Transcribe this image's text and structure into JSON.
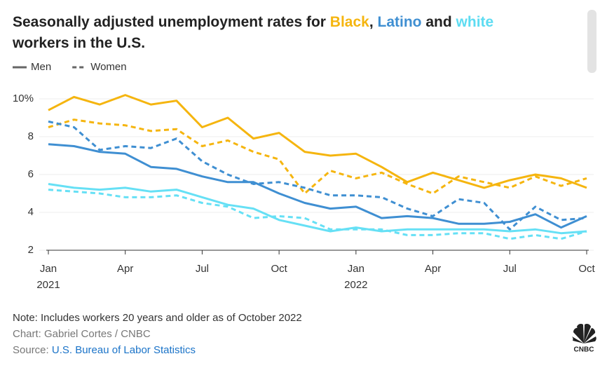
{
  "chart_data": {
    "type": "line",
    "title_lines": [
      [
        {
          "text": "Seasonally adjusted unemployment rates for "
        },
        {
          "text": "Black",
          "color": "#f5b50f"
        },
        {
          "text": ", "
        },
        {
          "text": "Latino",
          "color": "#3f8fd2"
        },
        {
          "text": " and "
        },
        {
          "text": "white",
          "color": "#5ddcf2"
        }
      ],
      [
        {
          "text": "workers in the U.S."
        }
      ]
    ],
    "legend": [
      {
        "label": "Men",
        "dash": false
      },
      {
        "label": "Women",
        "dash": true
      }
    ],
    "x": [
      "2021-01",
      "2021-02",
      "2021-03",
      "2021-04",
      "2021-05",
      "2021-06",
      "2021-07",
      "2021-08",
      "2021-09",
      "2021-10",
      "2021-11",
      "2021-12",
      "2022-01",
      "2022-02",
      "2022-03",
      "2022-04",
      "2022-05",
      "2022-06",
      "2022-07",
      "2022-08",
      "2022-09",
      "2022-10"
    ],
    "xticks": [
      {
        "value": "2021-01",
        "label": "Jan",
        "year": "2021"
      },
      {
        "value": "2021-04",
        "label": "Apr"
      },
      {
        "value": "2021-07",
        "label": "Jul"
      },
      {
        "value": "2021-10",
        "label": "Oct"
      },
      {
        "value": "2022-01",
        "label": "Jan",
        "year": "2022"
      },
      {
        "value": "2022-04",
        "label": "Apr"
      },
      {
        "value": "2022-07",
        "label": "Jul"
      },
      {
        "value": "2022-10",
        "label": "Oct"
      }
    ],
    "ylim": [
      2,
      10.4
    ],
    "yticks": [
      2,
      4,
      6,
      8,
      {
        "value": 10,
        "label": "10%"
      }
    ],
    "grid": true,
    "series": [
      {
        "color": "#f5b50f",
        "dash": false,
        "values": [
          9.4,
          10.1,
          9.7,
          10.2,
          9.7,
          9.9,
          8.5,
          9.0,
          7.9,
          8.2,
          7.2,
          7.0,
          7.1,
          6.4,
          5.6,
          6.1,
          5.7,
          5.3,
          5.7,
          6.0,
          5.8,
          5.3
        ]
      },
      {
        "color": "#f5b50f",
        "dash": true,
        "values": [
          8.5,
          8.9,
          8.7,
          8.6,
          8.3,
          8.4,
          7.5,
          7.8,
          7.2,
          6.8,
          5.0,
          6.2,
          5.8,
          6.1,
          5.5,
          5.0,
          5.9,
          5.6,
          5.3,
          5.9,
          5.4,
          5.8
        ]
      },
      {
        "color": "#3f8fd2",
        "dash": false,
        "values": [
          7.6,
          7.5,
          7.2,
          7.1,
          6.4,
          6.3,
          5.9,
          5.6,
          5.6,
          5.0,
          4.5,
          4.2,
          4.3,
          3.7,
          3.8,
          3.7,
          3.4,
          3.4,
          3.5,
          3.9,
          3.2,
          3.8
        ]
      },
      {
        "color": "#3f8fd2",
        "dash": true,
        "values": [
          8.8,
          8.5,
          7.3,
          7.5,
          7.4,
          7.9,
          6.7,
          6.0,
          5.5,
          5.6,
          5.3,
          4.9,
          4.9,
          4.8,
          4.2,
          3.8,
          4.7,
          4.5,
          3.1,
          4.3,
          3.6,
          3.7
        ]
      },
      {
        "color": "#66e0f5",
        "dash": false,
        "values": [
          5.5,
          5.3,
          5.2,
          5.3,
          5.1,
          5.2,
          4.8,
          4.4,
          4.2,
          3.6,
          3.3,
          3.0,
          3.2,
          3.0,
          3.1,
          3.1,
          3.1,
          3.1,
          3.0,
          3.1,
          2.9,
          3.0
        ]
      },
      {
        "color": "#66e0f5",
        "dash": true,
        "values": [
          5.2,
          5.1,
          5.0,
          4.8,
          4.8,
          4.9,
          4.5,
          4.3,
          3.7,
          3.8,
          3.7,
          3.1,
          3.1,
          3.1,
          2.8,
          2.8,
          2.9,
          2.9,
          2.6,
          2.8,
          2.6,
          3.0
        ]
      }
    ],
    "note": "Note: Includes workers 20 years and older as of October 2022",
    "credit": "Chart: Gabriel Cortes / CNBC",
    "source_prefix": "Source: ",
    "source": "U.S. Bureau of Labor Statistics",
    "logo": "CNBC"
  }
}
